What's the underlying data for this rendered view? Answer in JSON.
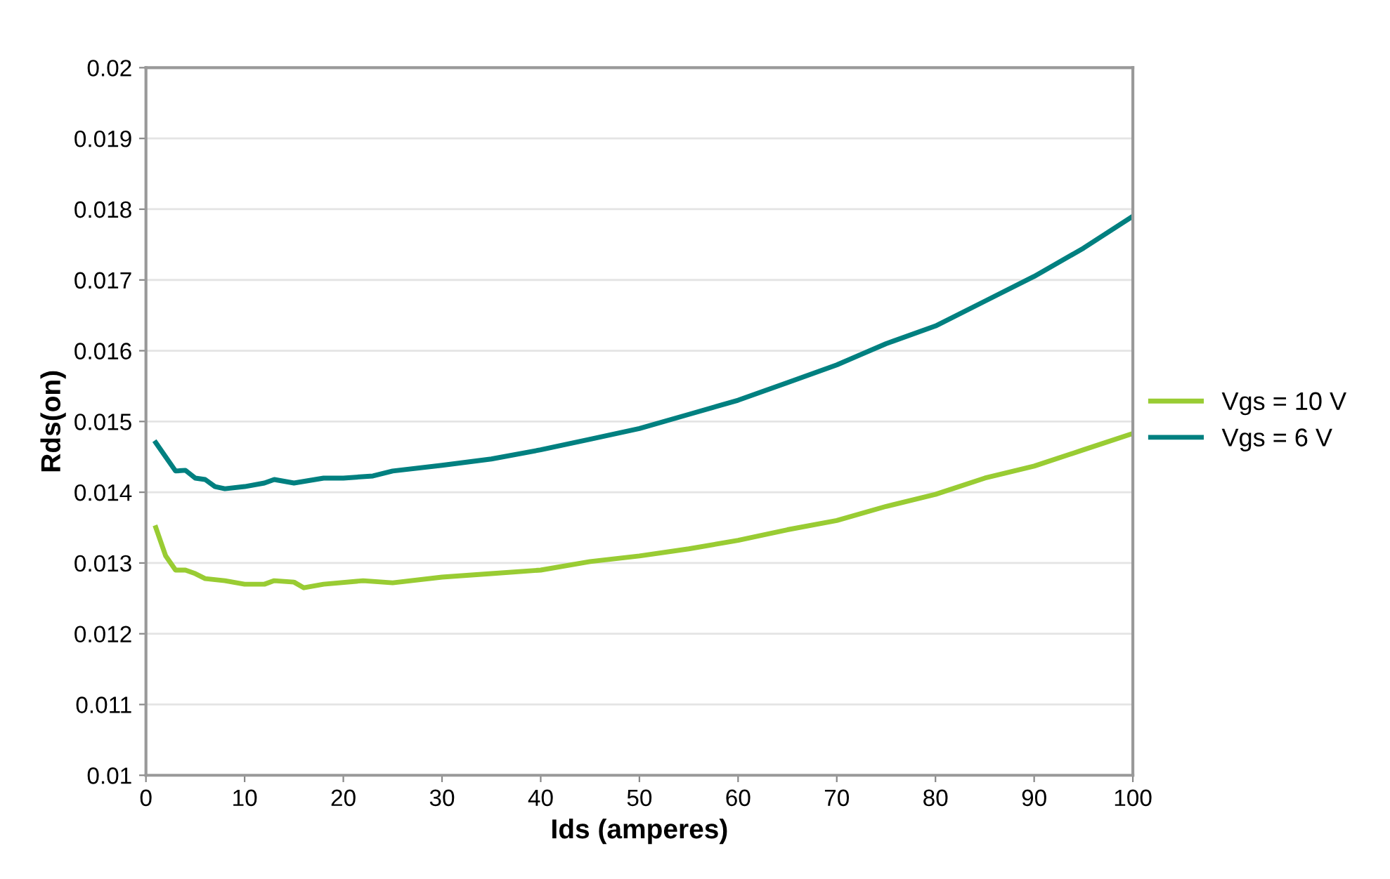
{
  "chart_data": {
    "type": "line",
    "xlabel": "Ids (amperes)",
    "ylabel": "Rds(on)",
    "series": [
      {
        "name": "Vgs = 10 V",
        "color": "#99cc33",
        "x": [
          1,
          2,
          3,
          4,
          5,
          6,
          8,
          10,
          12,
          13,
          15,
          16,
          18,
          22,
          25,
          30,
          35,
          40,
          45,
          50,
          55,
          60,
          65,
          70,
          75,
          80,
          85,
          90,
          95,
          100
        ],
        "values": [
          0.0135,
          0.0131,
          0.0129,
          0.0129,
          0.01285,
          0.01278,
          0.01275,
          0.0127,
          0.0127,
          0.01275,
          0.01273,
          0.01265,
          0.0127,
          0.01275,
          0.01272,
          0.0128,
          0.01285,
          0.0129,
          0.01302,
          0.0131,
          0.0132,
          0.01332,
          0.01347,
          0.0136,
          0.0138,
          0.01397,
          0.0142,
          0.01437,
          0.0146,
          0.01483
        ]
      },
      {
        "name": "Vgs = 6 V",
        "color": "#008080",
        "x": [
          1,
          2,
          3,
          4,
          5,
          6,
          7,
          8,
          10,
          12,
          13,
          15,
          18,
          20,
          23,
          25,
          30,
          35,
          40,
          45,
          50,
          55,
          60,
          65,
          70,
          75,
          80,
          85,
          90,
          95,
          100
        ],
        "values": [
          0.0147,
          0.0145,
          0.0143,
          0.01431,
          0.0142,
          0.01418,
          0.01408,
          0.01405,
          0.01408,
          0.01413,
          0.01418,
          0.01413,
          0.0142,
          0.0142,
          0.01423,
          0.0143,
          0.01438,
          0.01447,
          0.0146,
          0.01475,
          0.0149,
          0.0151,
          0.0153,
          0.01555,
          0.0158,
          0.0161,
          0.01635,
          0.0167,
          0.01705,
          0.01745,
          0.0179
        ]
      }
    ],
    "xlim": [
      0,
      100
    ],
    "xticks": [
      0,
      10,
      20,
      30,
      40,
      50,
      60,
      70,
      80,
      90,
      100
    ],
    "ylim": [
      0.01,
      0.02
    ],
    "yticks": [
      0.01,
      0.011,
      0.012,
      0.013,
      0.014,
      0.015,
      0.016,
      0.017,
      0.018,
      0.019,
      0.02
    ],
    "grid": "y",
    "legend": "right",
    "line_style": "solid",
    "marker": "none"
  }
}
